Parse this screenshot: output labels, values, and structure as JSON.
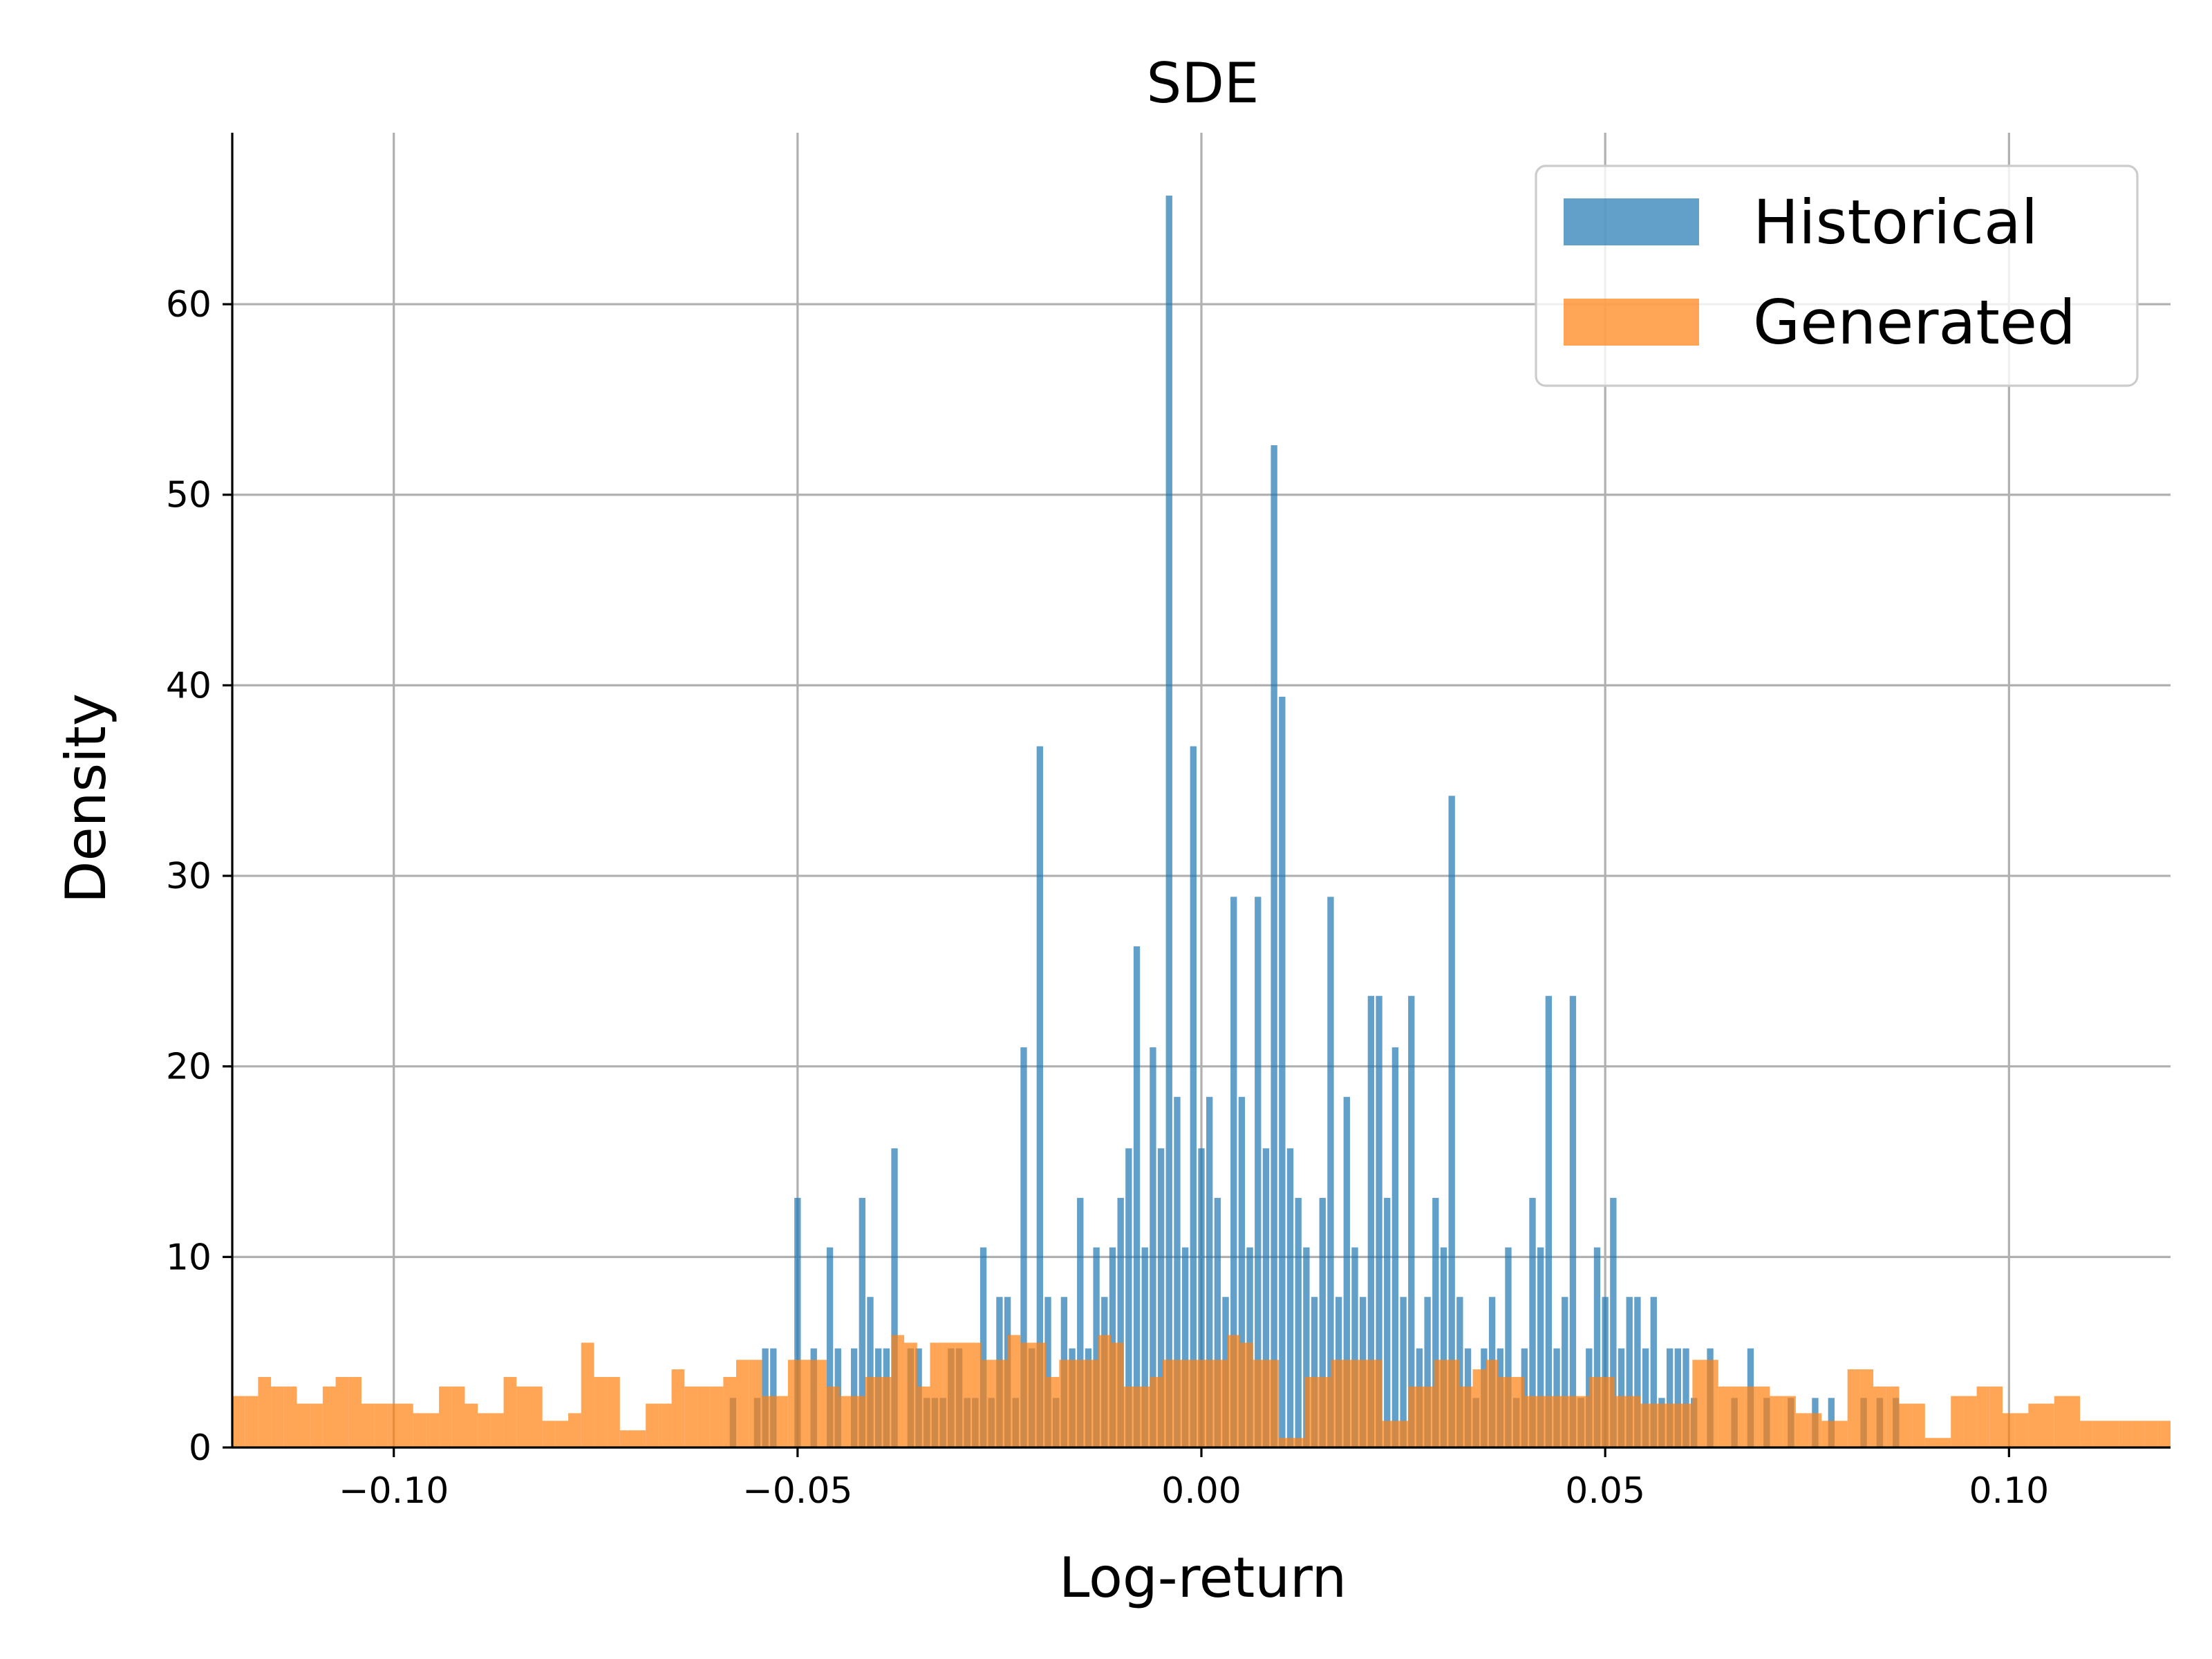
{
  "chart_data": {
    "type": "bar",
    "title": "SDE",
    "xlabel": "Log-return",
    "ylabel": "Density",
    "xlim": [
      -0.12,
      0.12
    ],
    "ylim": [
      0,
      69
    ],
    "xticks": [
      -0.1,
      -0.05,
      0.0,
      0.05,
      0.1
    ],
    "xtick_labels": [
      "−0.10",
      "−0.05",
      "0.00",
      "0.05",
      "0.10"
    ],
    "yticks": [
      0,
      10,
      20,
      30,
      40,
      50,
      60
    ],
    "ytick_labels": [
      "0",
      "10",
      "20",
      "30",
      "40",
      "50",
      "60"
    ],
    "grid": true,
    "legend_position": "top-right",
    "series": [
      {
        "name": "Historical",
        "color": "#1f77b4",
        "opacity": 0.7,
        "bin_width": 0.0008,
        "bins": [
          [
            -0.058,
            2.6
          ],
          [
            -0.055,
            2.6
          ],
          [
            -0.054,
            5.2
          ],
          [
            -0.053,
            5.2
          ],
          [
            -0.05,
            13.1
          ],
          [
            -0.048,
            5.2
          ],
          [
            -0.046,
            10.5
          ],
          [
            -0.045,
            5.2
          ],
          [
            -0.043,
            5.2
          ],
          [
            -0.042,
            13.1
          ],
          [
            -0.041,
            7.9
          ],
          [
            -0.04,
            5.2
          ],
          [
            -0.039,
            5.2
          ],
          [
            -0.038,
            15.7
          ],
          [
            -0.036,
            5.2
          ],
          [
            -0.035,
            5.2
          ],
          [
            -0.034,
            2.6
          ],
          [
            -0.033,
            2.6
          ],
          [
            -0.032,
            2.6
          ],
          [
            -0.031,
            5.2
          ],
          [
            -0.03,
            5.2
          ],
          [
            -0.029,
            2.6
          ],
          [
            -0.028,
            2.6
          ],
          [
            -0.027,
            10.5
          ],
          [
            -0.026,
            2.6
          ],
          [
            -0.025,
            7.9
          ],
          [
            -0.024,
            7.9
          ],
          [
            -0.023,
            2.6
          ],
          [
            -0.022,
            21.0
          ],
          [
            -0.021,
            5.2
          ],
          [
            -0.02,
            36.8
          ],
          [
            -0.019,
            7.9
          ],
          [
            -0.018,
            2.6
          ],
          [
            -0.017,
            7.9
          ],
          [
            -0.016,
            5.2
          ],
          [
            -0.015,
            13.1
          ],
          [
            -0.014,
            5.2
          ],
          [
            -0.013,
            10.5
          ],
          [
            -0.012,
            7.9
          ],
          [
            -0.011,
            10.5
          ],
          [
            -0.01,
            13.1
          ],
          [
            -0.009,
            15.7
          ],
          [
            -0.008,
            26.3
          ],
          [
            -0.007,
            10.5
          ],
          [
            -0.006,
            21.0
          ],
          [
            -0.005,
            15.7
          ],
          [
            -0.004,
            65.7
          ],
          [
            -0.003,
            18.4
          ],
          [
            -0.002,
            10.5
          ],
          [
            -0.001,
            36.8
          ],
          [
            0.0,
            15.7
          ],
          [
            0.001,
            18.4
          ],
          [
            0.002,
            13.1
          ],
          [
            0.003,
            7.9
          ],
          [
            0.004,
            28.9
          ],
          [
            0.005,
            18.4
          ],
          [
            0.006,
            10.5
          ],
          [
            0.007,
            28.9
          ],
          [
            0.008,
            15.7
          ],
          [
            0.009,
            52.6
          ],
          [
            0.01,
            39.4
          ],
          [
            0.011,
            15.7
          ],
          [
            0.012,
            13.1
          ],
          [
            0.013,
            10.5
          ],
          [
            0.014,
            7.9
          ],
          [
            0.015,
            13.1
          ],
          [
            0.016,
            28.9
          ],
          [
            0.017,
            7.9
          ],
          [
            0.018,
            18.4
          ],
          [
            0.019,
            10.5
          ],
          [
            0.02,
            7.9
          ],
          [
            0.021,
            23.7
          ],
          [
            0.022,
            23.7
          ],
          [
            0.023,
            13.1
          ],
          [
            0.024,
            21.0
          ],
          [
            0.025,
            7.9
          ],
          [
            0.026,
            23.7
          ],
          [
            0.027,
            5.2
          ],
          [
            0.028,
            7.9
          ],
          [
            0.029,
            13.1
          ],
          [
            0.03,
            10.5
          ],
          [
            0.031,
            34.2
          ],
          [
            0.032,
            7.9
          ],
          [
            0.033,
            5.2
          ],
          [
            0.034,
            2.6
          ],
          [
            0.035,
            5.2
          ],
          [
            0.036,
            7.9
          ],
          [
            0.037,
            5.2
          ],
          [
            0.038,
            10.5
          ],
          [
            0.039,
            2.6
          ],
          [
            0.04,
            5.2
          ],
          [
            0.041,
            13.1
          ],
          [
            0.042,
            10.5
          ],
          [
            0.043,
            23.7
          ],
          [
            0.044,
            5.2
          ],
          [
            0.045,
            7.9
          ],
          [
            0.046,
            23.7
          ],
          [
            0.047,
            2.6
          ],
          [
            0.048,
            5.2
          ],
          [
            0.049,
            10.5
          ],
          [
            0.05,
            7.9
          ],
          [
            0.051,
            13.1
          ],
          [
            0.052,
            5.2
          ],
          [
            0.053,
            7.9
          ],
          [
            0.054,
            7.9
          ],
          [
            0.055,
            5.2
          ],
          [
            0.056,
            7.9
          ],
          [
            0.057,
            2.6
          ],
          [
            0.058,
            5.2
          ],
          [
            0.059,
            5.2
          ],
          [
            0.06,
            5.2
          ],
          [
            0.061,
            2.6
          ],
          [
            0.063,
            5.2
          ],
          [
            0.066,
            2.6
          ],
          [
            0.068,
            5.2
          ],
          [
            0.07,
            2.6
          ],
          [
            0.073,
            2.6
          ],
          [
            0.076,
            2.6
          ],
          [
            0.078,
            2.6
          ],
          [
            0.082,
            2.6
          ],
          [
            0.084,
            2.6
          ],
          [
            0.086,
            2.6
          ]
        ]
      },
      {
        "name": "Generated",
        "color": "#ff7f0e",
        "opacity": 0.7,
        "bin_width": 0.0016,
        "bins": [
          [
            -0.1192,
            2.7
          ],
          [
            -0.1176,
            2.7
          ],
          [
            -0.116,
            3.7
          ],
          [
            -0.1144,
            3.2
          ],
          [
            -0.1128,
            3.2
          ],
          [
            -0.1112,
            2.3
          ],
          [
            -0.1096,
            2.3
          ],
          [
            -0.108,
            3.2
          ],
          [
            -0.1064,
            3.7
          ],
          [
            -0.1048,
            3.7
          ],
          [
            -0.1032,
            2.3
          ],
          [
            -0.1016,
            2.3
          ],
          [
            -0.1,
            2.3
          ],
          [
            -0.0984,
            2.3
          ],
          [
            -0.0968,
            1.8
          ],
          [
            -0.0952,
            1.8
          ],
          [
            -0.0936,
            3.2
          ],
          [
            -0.092,
            3.2
          ],
          [
            -0.0904,
            2.3
          ],
          [
            -0.0888,
            1.8
          ],
          [
            -0.0872,
            1.8
          ],
          [
            -0.0856,
            3.7
          ],
          [
            -0.084,
            3.2
          ],
          [
            -0.0824,
            3.2
          ],
          [
            -0.0808,
            1.4
          ],
          [
            -0.0792,
            1.4
          ],
          [
            -0.0776,
            1.8
          ],
          [
            -0.076,
            5.5
          ],
          [
            -0.0744,
            3.7
          ],
          [
            -0.0728,
            3.7
          ],
          [
            -0.0712,
            0.9
          ],
          [
            -0.0696,
            0.9
          ],
          [
            -0.068,
            2.3
          ],
          [
            -0.0664,
            2.3
          ],
          [
            -0.0648,
            4.1
          ],
          [
            -0.0632,
            3.2
          ],
          [
            -0.0616,
            3.2
          ],
          [
            -0.06,
            3.2
          ],
          [
            -0.0584,
            3.7
          ],
          [
            -0.0568,
            4.6
          ],
          [
            -0.0552,
            4.6
          ],
          [
            -0.0536,
            2.7
          ],
          [
            -0.052,
            2.7
          ],
          [
            -0.0504,
            4.6
          ],
          [
            -0.0488,
            4.6
          ],
          [
            -0.0472,
            4.6
          ],
          [
            -0.0456,
            3.2
          ],
          [
            -0.044,
            2.7
          ],
          [
            -0.0424,
            2.7
          ],
          [
            -0.0408,
            3.7
          ],
          [
            -0.0392,
            3.7
          ],
          [
            -0.0376,
            5.9
          ],
          [
            -0.036,
            5.5
          ],
          [
            -0.0344,
            3.2
          ],
          [
            -0.0328,
            5.5
          ],
          [
            -0.0312,
            5.5
          ],
          [
            -0.0296,
            5.5
          ],
          [
            -0.028,
            5.5
          ],
          [
            -0.0264,
            4.6
          ],
          [
            -0.0248,
            4.6
          ],
          [
            -0.0232,
            5.9
          ],
          [
            -0.0216,
            5.5
          ],
          [
            -0.02,
            5.5
          ],
          [
            -0.0184,
            3.7
          ],
          [
            -0.0168,
            4.6
          ],
          [
            -0.0152,
            4.6
          ],
          [
            -0.0136,
            4.6
          ],
          [
            -0.012,
            5.9
          ],
          [
            -0.0104,
            5.5
          ],
          [
            -0.0088,
            3.2
          ],
          [
            -0.0072,
            3.2
          ],
          [
            -0.0056,
            3.7
          ],
          [
            -0.004,
            4.6
          ],
          [
            -0.0024,
            4.6
          ],
          [
            -0.0008,
            4.6
          ],
          [
            0.0008,
            4.6
          ],
          [
            0.0024,
            4.6
          ],
          [
            0.004,
            5.9
          ],
          [
            0.0056,
            5.5
          ],
          [
            0.0072,
            4.6
          ],
          [
            0.0088,
            4.6
          ],
          [
            0.0104,
            0.5
          ],
          [
            0.012,
            0.5
          ],
          [
            0.0136,
            3.7
          ],
          [
            0.0152,
            3.7
          ],
          [
            0.0168,
            4.6
          ],
          [
            0.0184,
            4.6
          ],
          [
            0.02,
            4.6
          ],
          [
            0.0216,
            4.6
          ],
          [
            0.0232,
            1.4
          ],
          [
            0.0248,
            1.4
          ],
          [
            0.0264,
            3.2
          ],
          [
            0.028,
            3.2
          ],
          [
            0.0296,
            4.6
          ],
          [
            0.0312,
            4.6
          ],
          [
            0.0328,
            3.2
          ],
          [
            0.0344,
            4.1
          ],
          [
            0.036,
            4.6
          ],
          [
            0.0376,
            3.7
          ],
          [
            0.0392,
            3.7
          ],
          [
            0.0408,
            2.7
          ],
          [
            0.0424,
            2.7
          ],
          [
            0.044,
            2.7
          ],
          [
            0.0456,
            2.7
          ],
          [
            0.0472,
            2.7
          ],
          [
            0.0488,
            3.7
          ],
          [
            0.0504,
            3.7
          ],
          [
            0.052,
            2.7
          ],
          [
            0.0536,
            2.7
          ],
          [
            0.0552,
            2.3
          ],
          [
            0.0568,
            2.3
          ],
          [
            0.0584,
            2.3
          ],
          [
            0.06,
            2.3
          ],
          [
            0.0616,
            4.6
          ],
          [
            0.0632,
            4.6
          ],
          [
            0.0648,
            3.2
          ],
          [
            0.0664,
            3.2
          ],
          [
            0.068,
            3.2
          ],
          [
            0.0696,
            3.2
          ],
          [
            0.0712,
            2.7
          ],
          [
            0.0728,
            2.7
          ],
          [
            0.0744,
            1.8
          ],
          [
            0.076,
            1.8
          ],
          [
            0.0776,
            1.4
          ],
          [
            0.0792,
            1.4
          ],
          [
            0.0808,
            4.1
          ],
          [
            0.0824,
            4.1
          ],
          [
            0.084,
            3.2
          ],
          [
            0.0856,
            3.2
          ],
          [
            0.0872,
            2.3
          ],
          [
            0.0888,
            2.3
          ],
          [
            0.0904,
            0.5
          ],
          [
            0.092,
            0.5
          ],
          [
            0.0936,
            2.7
          ],
          [
            0.0952,
            2.7
          ],
          [
            0.0968,
            3.2
          ],
          [
            0.0984,
            3.2
          ],
          [
            0.1,
            1.8
          ],
          [
            0.1016,
            1.8
          ],
          [
            0.1032,
            2.3
          ],
          [
            0.1048,
            2.3
          ],
          [
            0.1064,
            2.7
          ],
          [
            0.108,
            2.7
          ],
          [
            0.1096,
            1.4
          ],
          [
            0.1112,
            1.4
          ],
          [
            0.1128,
            1.4
          ],
          [
            0.1144,
            1.4
          ],
          [
            0.116,
            1.4
          ],
          [
            0.1176,
            1.4
          ],
          [
            0.1192,
            1.4
          ]
        ]
      }
    ]
  }
}
